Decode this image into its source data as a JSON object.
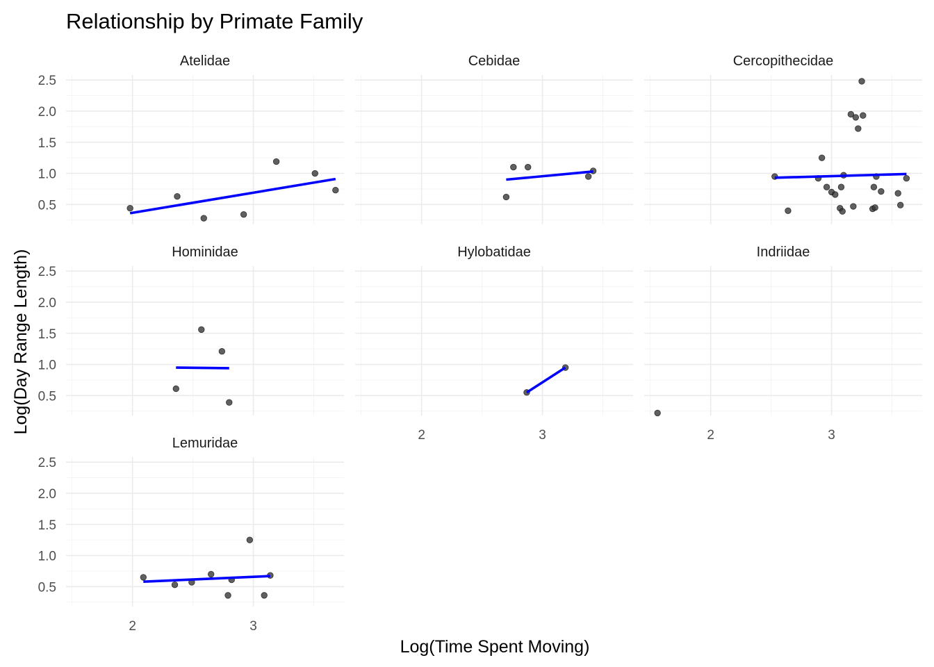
{
  "title": "Relationship by Primate Family",
  "x_axis_title": "Log(Time Spent Moving)",
  "y_axis_title": "Log(Day Range Length)",
  "colors": {
    "points": "#333333",
    "fit_line": "#0000ff",
    "grid_major": "#ebebeb",
    "grid_minor": "#f3f3f3"
  },
  "chart_data": {
    "type": "scatter",
    "facet_layout": "3 columns, 7 panels",
    "xlim": [
      1.45,
      3.75
    ],
    "ylim": [
      0.18,
      2.58
    ],
    "x_ticks": [
      2,
      3
    ],
    "x_tick_labels": [
      "2",
      "3"
    ],
    "y_ticks": [
      0.5,
      1.0,
      1.5,
      2.0,
      2.5
    ],
    "y_tick_labels": [
      "0.5",
      "1.0",
      "1.5",
      "2.0",
      "2.5"
    ],
    "grid": true,
    "fit": "linear regression line per panel",
    "panels": [
      {
        "name": "Atelidae",
        "points": [
          [
            1.98,
            0.44
          ],
          [
            2.37,
            0.63
          ],
          [
            2.59,
            0.28
          ],
          [
            2.92,
            0.34
          ],
          [
            3.19,
            1.19
          ],
          [
            3.51,
            1.0
          ],
          [
            3.68,
            0.73
          ]
        ],
        "fit": [
          [
            1.98,
            0.36
          ],
          [
            3.68,
            0.91
          ]
        ]
      },
      {
        "name": "Cebidae",
        "points": [
          [
            2.7,
            0.62
          ],
          [
            2.76,
            1.1
          ],
          [
            2.88,
            1.1
          ],
          [
            3.38,
            0.95
          ],
          [
            3.42,
            1.04
          ]
        ],
        "fit": [
          [
            2.7,
            0.9
          ],
          [
            3.42,
            1.03
          ]
        ]
      },
      {
        "name": "Cercopithecidae",
        "points": [
          [
            2.53,
            0.95
          ],
          [
            2.64,
            0.4
          ],
          [
            2.89,
            0.92
          ],
          [
            2.92,
            1.25
          ],
          [
            2.96,
            0.78
          ],
          [
            3.0,
            0.7
          ],
          [
            3.03,
            0.66
          ],
          [
            3.07,
            0.44
          ],
          [
            3.08,
            0.78
          ],
          [
            3.09,
            0.39
          ],
          [
            3.1,
            0.97
          ],
          [
            3.16,
            1.95
          ],
          [
            3.18,
            0.47
          ],
          [
            3.2,
            1.9
          ],
          [
            3.22,
            1.72
          ],
          [
            3.25,
            2.48
          ],
          [
            3.26,
            1.93
          ],
          [
            3.34,
            0.43
          ],
          [
            3.35,
            0.78
          ],
          [
            3.36,
            0.45
          ],
          [
            3.37,
            0.95
          ],
          [
            3.41,
            0.71
          ],
          [
            3.55,
            0.68
          ],
          [
            3.57,
            0.49
          ],
          [
            3.62,
            0.92
          ]
        ],
        "fit": [
          [
            2.53,
            0.93
          ],
          [
            3.62,
            0.99
          ]
        ]
      },
      {
        "name": "Hominidae",
        "points": [
          [
            2.36,
            0.61
          ],
          [
            2.57,
            1.56
          ],
          [
            2.74,
            1.21
          ],
          [
            2.8,
            0.39
          ]
        ],
        "fit": [
          [
            2.36,
            0.95
          ],
          [
            2.8,
            0.94
          ]
        ]
      },
      {
        "name": "Hylobatidae",
        "points": [
          [
            2.87,
            0.55
          ],
          [
            3.19,
            0.95
          ]
        ],
        "fit": [
          [
            2.87,
            0.55
          ],
          [
            3.19,
            0.95
          ]
        ]
      },
      {
        "name": "Indriidae",
        "points": [
          [
            1.56,
            0.22
          ]
        ],
        "fit": []
      },
      {
        "name": "Lemuridae",
        "points": [
          [
            2.09,
            0.65
          ],
          [
            2.35,
            0.53
          ],
          [
            2.49,
            0.57
          ],
          [
            2.65,
            0.7
          ],
          [
            2.79,
            0.36
          ],
          [
            2.82,
            0.61
          ],
          [
            2.97,
            1.25
          ],
          [
            3.09,
            0.36
          ],
          [
            3.14,
            0.68
          ]
        ],
        "fit": [
          [
            2.09,
            0.58
          ],
          [
            3.14,
            0.67
          ]
        ]
      }
    ]
  }
}
